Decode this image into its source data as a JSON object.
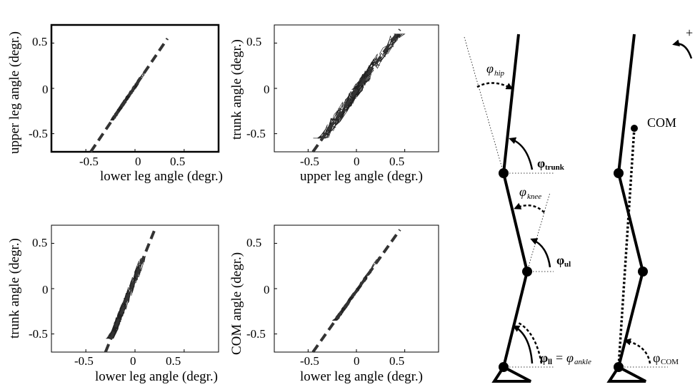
{
  "chart_data": [
    {
      "type": "scatter",
      "xlabel": "lower leg angle (degr.)",
      "ylabel": "upper leg angle (degr.)",
      "xlim": [
        -0.85,
        0.85
      ],
      "ylim": [
        -0.7,
        0.7
      ],
      "xticks": [
        "-0.5",
        "0",
        "0.5"
      ],
      "yticks": [
        "0.5",
        "0",
        "-0.5"
      ],
      "fit_line": {
        "x": [
          -0.45,
          0.33
        ],
        "y": [
          -0.7,
          0.55
        ],
        "style": "dashed"
      },
      "trace": {
        "x_range": [
          -0.25,
          0.33
        ],
        "y_range": [
          -0.35,
          0.35
        ]
      }
    },
    {
      "type": "scatter",
      "xlabel": "upper leg angle (degr.)",
      "ylabel": "trunk angle (degr.)",
      "xlim": [
        -0.85,
        0.85
      ],
      "ylim": [
        -0.7,
        0.7
      ],
      "xticks": [
        "-0.5",
        "0",
        "0.5"
      ],
      "yticks": [
        "0.5",
        "0",
        "-0.5"
      ],
      "fit_line": {
        "x": [
          -0.45,
          0.45
        ],
        "y": [
          -0.7,
          0.65
        ],
        "style": "dashed"
      },
      "trace": {
        "x_range": [
          -0.45,
          0.5
        ],
        "y_range": [
          -0.55,
          0.6
        ]
      }
    },
    {
      "type": "scatter",
      "xlabel": "lower leg angle (degr.)",
      "ylabel": "trunk angle (degr.)",
      "xlim": [
        -0.85,
        0.85
      ],
      "ylim": [
        -0.7,
        0.7
      ],
      "xticks": [
        "-0.5",
        "0",
        "0.5"
      ],
      "yticks": [
        "0.5",
        "0",
        "-0.5"
      ],
      "fit_line": {
        "x": [
          -0.3,
          0.2
        ],
        "y": [
          -0.7,
          0.65
        ],
        "style": "dashed"
      },
      "trace": {
        "x_range": [
          -0.3,
          0.25
        ],
        "y_range": [
          -0.55,
          0.6
        ]
      }
    },
    {
      "type": "scatter",
      "xlabel": "lower leg angle (degr.)",
      "ylabel": "COM angle (degr.)",
      "xlim": [
        -0.85,
        0.85
      ],
      "ylim": [
        -0.7,
        0.7
      ],
      "xticks": [
        "-0.5",
        "0",
        "0.5"
      ],
      "yticks": [
        "0.5",
        "0",
        "-0.5"
      ],
      "fit_line": {
        "x": [
          -0.45,
          0.45
        ],
        "y": [
          -0.7,
          0.65
        ],
        "style": "dashed"
      },
      "trace": {
        "x_range": [
          -0.25,
          0.3
        ],
        "y_range": [
          -0.35,
          0.35
        ]
      }
    }
  ],
  "diagram": {
    "labels": {
      "hip": "φ",
      "hip_sub": "hip",
      "trunk": "φ",
      "trunk_sub": "trunk",
      "knee": "φ",
      "knee_sub": "knee",
      "ul": "φ",
      "ul_sub": "ul",
      "ll": "φ",
      "ll_sub": "ll",
      "equals": "=",
      "ankle": "φ",
      "ankle_sub": "ankle",
      "com_label": "COM",
      "com_angle": "φ",
      "com_angle_sub": "COM",
      "plus": "+"
    }
  }
}
